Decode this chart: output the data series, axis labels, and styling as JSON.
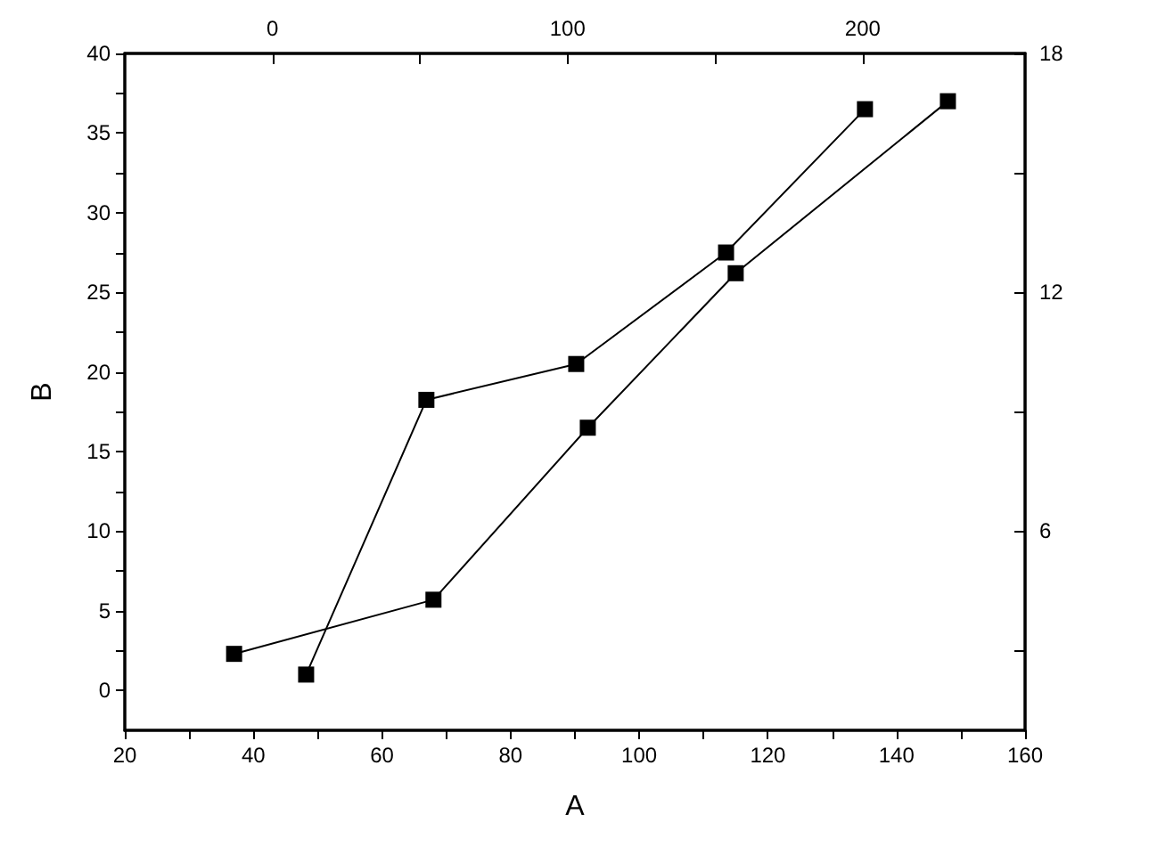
{
  "chart_data": {
    "type": "line",
    "xlabel": "A",
    "ylabel": "B",
    "marker": "square",
    "line_style": "solid",
    "xlim": [
      20,
      160
    ],
    "xticks": [
      20,
      {
        "value": 30,
        "label": null
      },
      40,
      {
        "value": 50,
        "label": null
      },
      60,
      {
        "value": 70,
        "label": null
      },
      80,
      {
        "value": 90,
        "label": null
      },
      100,
      {
        "value": 110,
        "label": null
      },
      120,
      {
        "value": 130,
        "label": null
      },
      140,
      {
        "value": 150,
        "label": null
      },
      160
    ],
    "ylim": [
      -2.5,
      40
    ],
    "yticks": [
      0,
      {
        "value": 2.5,
        "label": null
      },
      5,
      {
        "value": 7.5,
        "label": null
      },
      10,
      {
        "value": 12.5,
        "label": null
      },
      15,
      {
        "value": 17.5,
        "label": null
      },
      20,
      {
        "value": 22.5,
        "label": null
      },
      25,
      {
        "value": 27.5,
        "label": null
      },
      30,
      {
        "value": 32.5,
        "label": null
      },
      35,
      {
        "value": 37.5,
        "label": null
      },
      40
    ],
    "x2lim": [
      -50,
      255
    ],
    "x2ticks": [
      0,
      {
        "value": 50,
        "label": null
      },
      100,
      {
        "value": 150,
        "label": null
      },
      200
    ],
    "y2lim": [
      1,
      18
    ],
    "y2ticks": [
      {
        "value": 3,
        "label": null
      },
      6,
      {
        "value": 9,
        "label": null
      },
      12,
      {
        "value": 15,
        "label": null
      },
      18
    ],
    "series": [
      {
        "color": "#000000",
        "x": [
          37,
          68,
          92,
          115,
          148
        ],
        "values": [
          2.3,
          5.7,
          16.5,
          26.2,
          37.0
        ]
      },
      {
        "color": "#000000",
        "axis": "y2",
        "x": [
          48.2,
          66.9,
          90.2,
          113.5,
          135.1
        ],
        "values": [
          2.4,
          9.3,
          10.2,
          13.0,
          16.6
        ]
      }
    ]
  }
}
